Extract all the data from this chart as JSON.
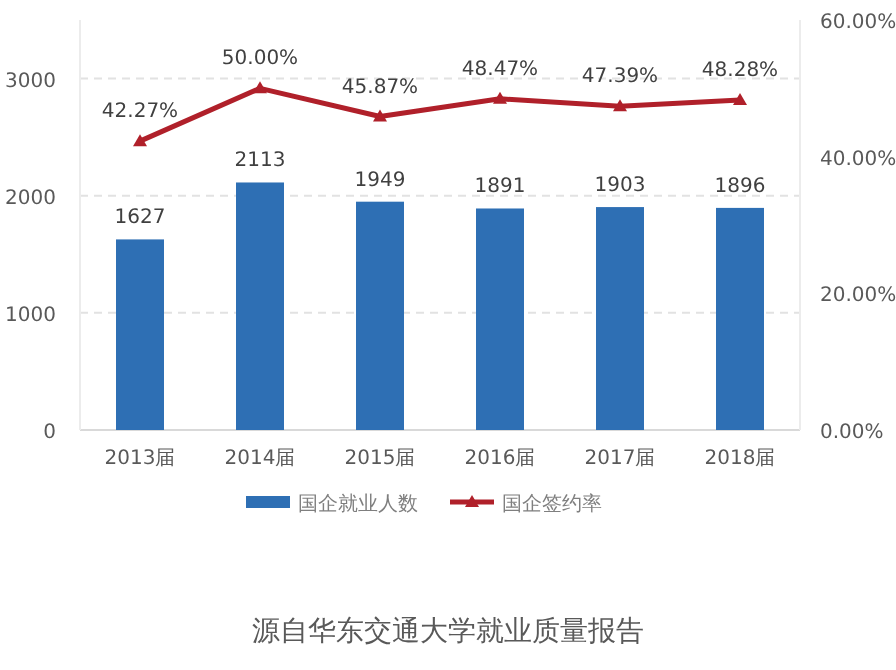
{
  "chart_data": {
    "type": "bar",
    "categories": [
      "2013届",
      "2014届",
      "2015届",
      "2016届",
      "2017届",
      "2018届"
    ],
    "series": [
      {
        "name": "国企就业人数",
        "color": "#2e6fb4",
        "values": [
          1627,
          2113,
          1949,
          1891,
          1903,
          1896
        ]
      },
      {
        "name": "国企签约率",
        "type": "line",
        "axis": "y2",
        "color": "#b0202a",
        "marker": "triangle",
        "values": [
          42.27,
          50.0,
          45.87,
          48.47,
          47.39,
          48.28
        ],
        "value_labels": [
          "42.27%",
          "50.00%",
          "45.87%",
          "48.47%",
          "47.39%",
          "48.28%"
        ]
      }
    ],
    "data_labels": true,
    "ylim": [
      0,
      3500
    ],
    "yticks": [
      0,
      1000,
      2000,
      3000
    ],
    "y2lim": [
      0,
      60
    ],
    "y2ticks": [
      {
        "value": 0,
        "label": "0.00%"
      },
      {
        "value": 20,
        "label": "20.00%"
      },
      {
        "value": 40,
        "label": "40.00%"
      },
      {
        "value": 60,
        "label": "60.00%"
      }
    ],
    "grid": "y",
    "legend": "bottom",
    "annotations": [
      "源自华东交通大学就业质量报告"
    ]
  }
}
